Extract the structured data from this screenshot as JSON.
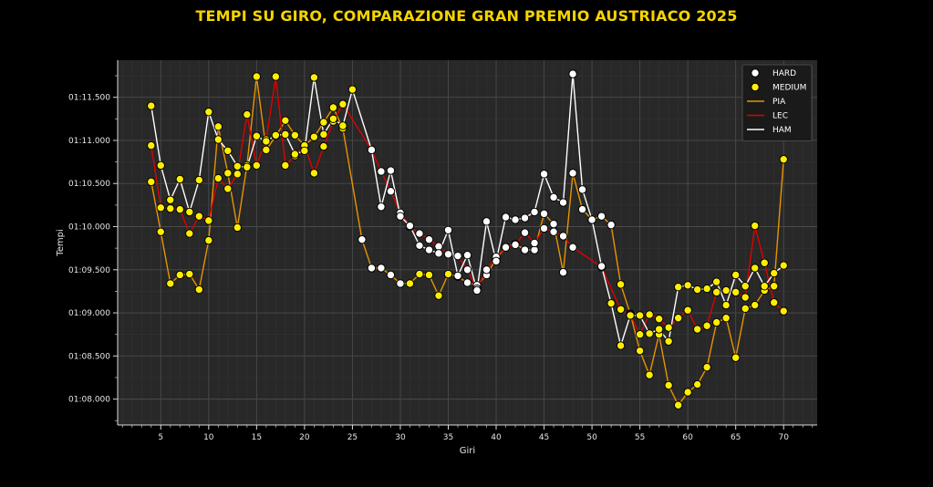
{
  "chart_data": {
    "type": "line",
    "title": "TEMPI SU GIRO, COMPARAZIONE GRAN PREMIO AUSTRIACO 2025",
    "xlabel": "Giri",
    "ylabel": "Tempi",
    "xlim": [
      0.5,
      73.5
    ],
    "ylim": [
      67.7,
      71.93
    ],
    "x_ticks": [
      5,
      10,
      15,
      20,
      25,
      30,
      35,
      40,
      45,
      50,
      55,
      60,
      65,
      70
    ],
    "y_ticks": [
      {
        "value": 68.0,
        "label": "01:08.000"
      },
      {
        "value": 68.5,
        "label": "01:08.500"
      },
      {
        "value": 69.0,
        "label": "01:09.000"
      },
      {
        "value": 69.5,
        "label": "01:09.500"
      },
      {
        "value": 70.0,
        "label": "01:10.000"
      },
      {
        "value": 70.5,
        "label": "01:10.500"
      },
      {
        "value": 71.0,
        "label": "01:11.000"
      },
      {
        "value": 71.5,
        "label": "01:11.500"
      }
    ],
    "grid": true,
    "legend_position": "top-right",
    "legend": [
      {
        "label": "HARD",
        "kind": "marker",
        "color": "#ffffff"
      },
      {
        "label": "MEDIUM",
        "kind": "marker",
        "color": "#ffee00"
      },
      {
        "label": "PIA",
        "kind": "line",
        "color": "#e69500"
      },
      {
        "label": "LEC",
        "kind": "line",
        "color": "#e00000"
      },
      {
        "label": "HAM",
        "kind": "line",
        "color": "#ffffff"
      }
    ],
    "series": [
      {
        "name": "PIA",
        "color": "#e69500",
        "points": [
          [
            4,
            70.52,
            "M"
          ],
          [
            5,
            69.94,
            "M"
          ],
          [
            6,
            69.34,
            "M"
          ],
          [
            7,
            69.44,
            "M"
          ],
          [
            8,
            69.45,
            "M"
          ],
          [
            9,
            69.27,
            "M"
          ],
          [
            10,
            69.84,
            "M"
          ],
          [
            11,
            71.16,
            "M"
          ],
          [
            12,
            70.62,
            "M"
          ],
          [
            13,
            69.99,
            "M"
          ],
          [
            14,
            70.71,
            "M"
          ],
          [
            15,
            71.74,
            "M"
          ],
          [
            16,
            70.89,
            "M"
          ],
          [
            17,
            71.05,
            "M"
          ],
          [
            18,
            71.23,
            "M"
          ],
          [
            19,
            71.06,
            "M"
          ],
          [
            20,
            70.94,
            "M"
          ],
          [
            21,
            71.04,
            "M"
          ],
          [
            22,
            71.21,
            "M"
          ],
          [
            23,
            71.38,
            "M"
          ],
          [
            24,
            71.14,
            "M"
          ],
          [
            26,
            69.85,
            "H"
          ],
          [
            27,
            69.52,
            "H"
          ],
          [
            28,
            69.52,
            "H"
          ],
          [
            29,
            69.44,
            "H"
          ],
          [
            30,
            69.34,
            "H"
          ],
          [
            31,
            69.34,
            "M"
          ],
          [
            32,
            69.45,
            "M"
          ],
          [
            33,
            69.44,
            "M"
          ],
          [
            34,
            69.2,
            "M"
          ],
          [
            35,
            69.45,
            "M"
          ],
          [
            36,
            69.42,
            "H"
          ],
          [
            37,
            69.35,
            "H"
          ],
          [
            38,
            69.32,
            "H"
          ],
          [
            39,
            69.44,
            "H"
          ],
          [
            40,
            69.63,
            "H"
          ],
          [
            41,
            69.76,
            "H"
          ],
          [
            42,
            69.8,
            "H"
          ],
          [
            43,
            69.73,
            "H"
          ],
          [
            44,
            69.73,
            "H"
          ],
          [
            45,
            70.15,
            "H"
          ],
          [
            46,
            70.03,
            "H"
          ],
          [
            47,
            69.47,
            "H"
          ],
          [
            48,
            70.62,
            "H"
          ],
          [
            49,
            70.2,
            "H"
          ],
          [
            50,
            70.08,
            "H"
          ],
          [
            51,
            70.12,
            "H"
          ],
          [
            52,
            70.02,
            "H"
          ],
          [
            53,
            69.33,
            "M"
          ],
          [
            54,
            68.99,
            "M"
          ],
          [
            55,
            68.56,
            "M"
          ],
          [
            56,
            68.28,
            "M"
          ],
          [
            57,
            68.75,
            "M"
          ],
          [
            58,
            68.16,
            "M"
          ],
          [
            59,
            67.93,
            "M"
          ],
          [
            60,
            68.08,
            "M"
          ],
          [
            61,
            68.17,
            "M"
          ],
          [
            62,
            68.37,
            "M"
          ],
          [
            63,
            68.89,
            "M"
          ],
          [
            64,
            68.94,
            "M"
          ],
          [
            65,
            68.48,
            "M"
          ],
          [
            66,
            69.05,
            "M"
          ],
          [
            67,
            69.09,
            "M"
          ],
          [
            68,
            69.26,
            "M"
          ],
          [
            69,
            69.31,
            "M"
          ],
          [
            70,
            70.78,
            "M"
          ]
        ]
      },
      {
        "name": "LEC",
        "color": "#e00000",
        "points": [
          [
            4,
            70.94,
            "M"
          ],
          [
            5,
            70.22,
            "M"
          ],
          [
            6,
            70.21,
            "M"
          ],
          [
            7,
            70.2,
            "M"
          ],
          [
            8,
            69.92,
            "M"
          ],
          [
            9,
            70.12,
            "M"
          ],
          [
            10,
            70.07,
            "M"
          ],
          [
            11,
            70.56,
            "M"
          ],
          [
            12,
            70.44,
            "M"
          ],
          [
            13,
            70.61,
            "M"
          ],
          [
            14,
            71.3,
            "M"
          ],
          [
            15,
            70.71,
            "M"
          ],
          [
            16,
            71.01,
            "M"
          ],
          [
            17,
            71.74,
            "M"
          ],
          [
            18,
            70.71,
            "M"
          ],
          [
            19,
            70.82,
            "M"
          ],
          [
            20,
            70.94,
            "M"
          ],
          [
            21,
            70.62,
            "M"
          ],
          [
            22,
            70.93,
            "M"
          ],
          [
            23,
            71.22,
            "M"
          ],
          [
            24,
            71.42,
            "M"
          ],
          [
            27,
            70.89,
            "H"
          ],
          [
            28,
            70.64,
            "H"
          ],
          [
            29,
            70.41,
            "H"
          ],
          [
            30,
            70.16,
            "H"
          ],
          [
            31,
            70.0,
            "H"
          ],
          [
            32,
            69.92,
            "H"
          ],
          [
            33,
            69.85,
            "H"
          ],
          [
            34,
            69.77,
            "H"
          ],
          [
            35,
            69.68,
            "H"
          ],
          [
            36,
            69.66,
            "H"
          ],
          [
            37,
            69.5,
            "H"
          ],
          [
            38,
            69.28,
            "H"
          ],
          [
            39,
            69.5,
            "H"
          ],
          [
            40,
            69.65,
            "H"
          ],
          [
            41,
            69.76,
            "H"
          ],
          [
            42,
            69.79,
            "H"
          ],
          [
            43,
            69.93,
            "H"
          ],
          [
            44,
            69.81,
            "H"
          ],
          [
            45,
            69.98,
            "H"
          ],
          [
            46,
            69.94,
            "H"
          ],
          [
            47,
            69.89,
            "H"
          ],
          [
            48,
            69.76,
            "H"
          ],
          [
            51,
            69.53,
            "H"
          ],
          [
            53,
            69.04,
            "M"
          ],
          [
            54,
            68.98,
            "M"
          ],
          [
            55,
            68.75,
            "M"
          ],
          [
            56,
            68.98,
            "M"
          ],
          [
            57,
            68.93,
            "M"
          ],
          [
            58,
            68.83,
            "M"
          ],
          [
            59,
            68.94,
            "M"
          ],
          [
            60,
            69.03,
            "M"
          ],
          [
            61,
            68.81,
            "M"
          ],
          [
            62,
            68.85,
            "M"
          ],
          [
            63,
            69.24,
            "M"
          ],
          [
            64,
            69.26,
            "M"
          ],
          [
            65,
            69.24,
            "M"
          ],
          [
            66,
            69.18,
            "M"
          ],
          [
            67,
            70.01,
            "M"
          ],
          [
            68,
            69.58,
            "M"
          ],
          [
            69,
            69.12,
            "M"
          ],
          [
            70,
            69.02,
            "M"
          ]
        ]
      },
      {
        "name": "HAM",
        "color": "#ffffff",
        "points": [
          [
            4,
            71.4,
            "M"
          ],
          [
            5,
            70.71,
            "M"
          ],
          [
            6,
            70.31,
            "M"
          ],
          [
            7,
            70.55,
            "M"
          ],
          [
            8,
            70.17,
            "M"
          ],
          [
            9,
            70.54,
            "M"
          ],
          [
            10,
            71.33,
            "M"
          ],
          [
            11,
            71.01,
            "M"
          ],
          [
            12,
            70.88,
            "M"
          ],
          [
            13,
            70.7,
            "M"
          ],
          [
            14,
            70.69,
            "M"
          ],
          [
            15,
            71.05,
            "M"
          ],
          [
            16,
            70.99,
            "M"
          ],
          [
            17,
            71.06,
            "M"
          ],
          [
            18,
            71.07,
            "M"
          ],
          [
            19,
            70.84,
            "M"
          ],
          [
            20,
            70.88,
            "M"
          ],
          [
            21,
            71.73,
            "M"
          ],
          [
            22,
            71.07,
            "M"
          ],
          [
            23,
            71.25,
            "M"
          ],
          [
            24,
            71.17,
            "M"
          ],
          [
            25,
            71.59,
            "M"
          ],
          [
            27,
            70.89,
            "H"
          ],
          [
            28,
            70.23,
            "H"
          ],
          [
            29,
            70.65,
            "H"
          ],
          [
            30,
            70.12,
            "H"
          ],
          [
            31,
            70.01,
            "H"
          ],
          [
            32,
            69.78,
            "H"
          ],
          [
            33,
            69.73,
            "H"
          ],
          [
            34,
            69.69,
            "H"
          ],
          [
            35,
            69.96,
            "H"
          ],
          [
            36,
            69.43,
            "H"
          ],
          [
            37,
            69.67,
            "H"
          ],
          [
            38,
            69.26,
            "H"
          ],
          [
            39,
            70.06,
            "H"
          ],
          [
            40,
            69.6,
            "H"
          ],
          [
            41,
            70.11,
            "H"
          ],
          [
            42,
            70.08,
            "H"
          ],
          [
            43,
            70.1,
            "H"
          ],
          [
            44,
            70.17,
            "H"
          ],
          [
            45,
            70.61,
            "H"
          ],
          [
            46,
            70.34,
            "H"
          ],
          [
            47,
            70.28,
            "H"
          ],
          [
            48,
            71.77,
            "H"
          ],
          [
            49,
            70.43,
            "H"
          ],
          [
            50,
            70.08,
            "H"
          ],
          [
            51,
            69.54,
            "H"
          ],
          [
            52,
            69.11,
            "M"
          ],
          [
            53,
            68.62,
            "M"
          ],
          [
            54,
            68.97,
            "M"
          ],
          [
            55,
            68.97,
            "M"
          ],
          [
            56,
            68.76,
            "M"
          ],
          [
            57,
            68.81,
            "M"
          ],
          [
            58,
            68.67,
            "M"
          ],
          [
            59,
            69.3,
            "M"
          ],
          [
            60,
            69.32,
            "M"
          ],
          [
            61,
            69.27,
            "M"
          ],
          [
            62,
            69.28,
            "M"
          ],
          [
            63,
            69.36,
            "M"
          ],
          [
            64,
            69.09,
            "M"
          ],
          [
            65,
            69.44,
            "M"
          ],
          [
            66,
            69.31,
            "M"
          ],
          [
            67,
            69.52,
            "M"
          ],
          [
            68,
            69.31,
            "M"
          ],
          [
            69,
            69.46,
            "M"
          ],
          [
            70,
            69.55,
            "M"
          ]
        ]
      }
    ]
  },
  "colors": {
    "background": "#000000",
    "plot_background": "#282828",
    "grid": "#4a4a4a",
    "title": "#f5d400",
    "hard_marker": "#ffffff",
    "medium_marker": "#ffee00"
  }
}
